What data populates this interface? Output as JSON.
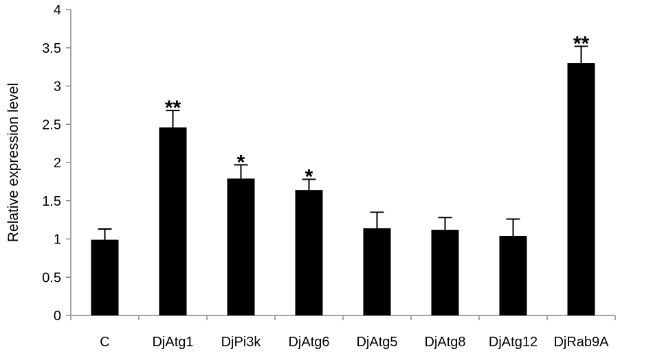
{
  "chart_data": {
    "type": "bar",
    "title": "",
    "xlabel": "",
    "ylabel": "Relative expression level",
    "ylim": [
      0,
      4
    ],
    "yticks": [
      0,
      0.5,
      1,
      1.5,
      2,
      2.5,
      3,
      3.5,
      4
    ],
    "ytick_labels": [
      "0",
      "0.5",
      "1",
      "1.5",
      "2",
      "2.5",
      "3",
      "3.5",
      "4"
    ],
    "categories": [
      "C",
      "DjAtg1",
      "DjPi3k",
      "DjAtg6",
      "DjAtg5",
      "DjAtg8",
      "DjAtg12",
      "DjRab9A"
    ],
    "values": [
      0.99,
      2.46,
      1.79,
      1.64,
      1.14,
      1.12,
      1.04,
      3.3
    ],
    "errors": [
      0.14,
      0.22,
      0.18,
      0.14,
      0.21,
      0.16,
      0.22,
      0.22
    ],
    "significance": [
      "",
      "**",
      "*",
      "*",
      "",
      "",
      "",
      "**"
    ],
    "bar_color": "#000000",
    "grid": false,
    "legend": "none"
  }
}
